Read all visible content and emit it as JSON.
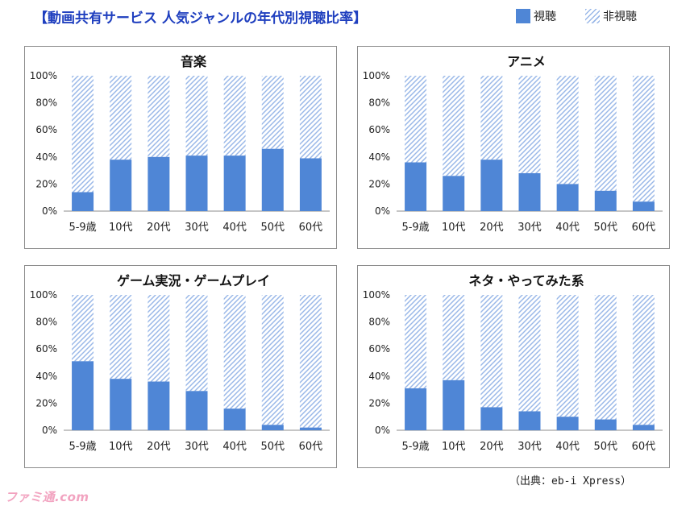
{
  "title": "【動画共有サービス 人気ジャンルの年代別視聴比率】",
  "legend": {
    "watch": "視聴",
    "not_watch": "非視聴"
  },
  "source": "（出典：eb-i Xpress）",
  "watermark": "ファミ通.com",
  "colors": {
    "watch": "#4f86d6",
    "hatch": "#9ab8e8",
    "frame": "#8c8c8c",
    "title": "#1f3fbf"
  },
  "chart_data": [
    {
      "type": "bar",
      "title": "音楽",
      "categories": [
        "5-9歳",
        "10代",
        "20代",
        "30代",
        "40代",
        "50代",
        "60代"
      ],
      "series": [
        {
          "name": "視聴",
          "values": [
            14,
            38,
            40,
            41,
            41,
            46,
            39
          ]
        },
        {
          "name": "非視聴",
          "values": [
            86,
            62,
            60,
            59,
            59,
            54,
            61
          ]
        }
      ],
      "yticks": [
        "0%",
        "20%",
        "40%",
        "60%",
        "80%",
        "100%"
      ],
      "ylim": [
        0,
        100
      ],
      "stacked": true
    },
    {
      "type": "bar",
      "title": "アニメ",
      "categories": [
        "5-9歳",
        "10代",
        "20代",
        "30代",
        "40代",
        "50代",
        "60代"
      ],
      "series": [
        {
          "name": "視聴",
          "values": [
            36,
            26,
            38,
            28,
            20,
            15,
            7
          ]
        },
        {
          "name": "非視聴",
          "values": [
            64,
            74,
            62,
            72,
            80,
            85,
            93
          ]
        }
      ],
      "yticks": [
        "0%",
        "20%",
        "40%",
        "60%",
        "80%",
        "100%"
      ],
      "ylim": [
        0,
        100
      ],
      "stacked": true
    },
    {
      "type": "bar",
      "title": "ゲーム実況・ゲームプレイ",
      "categories": [
        "5-9歳",
        "10代",
        "20代",
        "30代",
        "40代",
        "50代",
        "60代"
      ],
      "series": [
        {
          "name": "視聴",
          "values": [
            51,
            38,
            36,
            29,
            16,
            4,
            2
          ]
        },
        {
          "name": "非視聴",
          "values": [
            49,
            62,
            64,
            71,
            84,
            96,
            98
          ]
        }
      ],
      "yticks": [
        "0%",
        "20%",
        "40%",
        "60%",
        "80%",
        "100%"
      ],
      "ylim": [
        0,
        100
      ],
      "stacked": true
    },
    {
      "type": "bar",
      "title": "ネタ・やってみた系",
      "categories": [
        "5-9歳",
        "10代",
        "20代",
        "30代",
        "40代",
        "50代",
        "60代"
      ],
      "series": [
        {
          "name": "視聴",
          "values": [
            31,
            37,
            17,
            14,
            10,
            8,
            4
          ]
        },
        {
          "name": "非視聴",
          "values": [
            69,
            63,
            83,
            86,
            90,
            92,
            96
          ]
        }
      ],
      "yticks": [
        "0%",
        "20%",
        "40%",
        "60%",
        "80%",
        "100%"
      ],
      "ylim": [
        0,
        100
      ],
      "stacked": true
    }
  ]
}
